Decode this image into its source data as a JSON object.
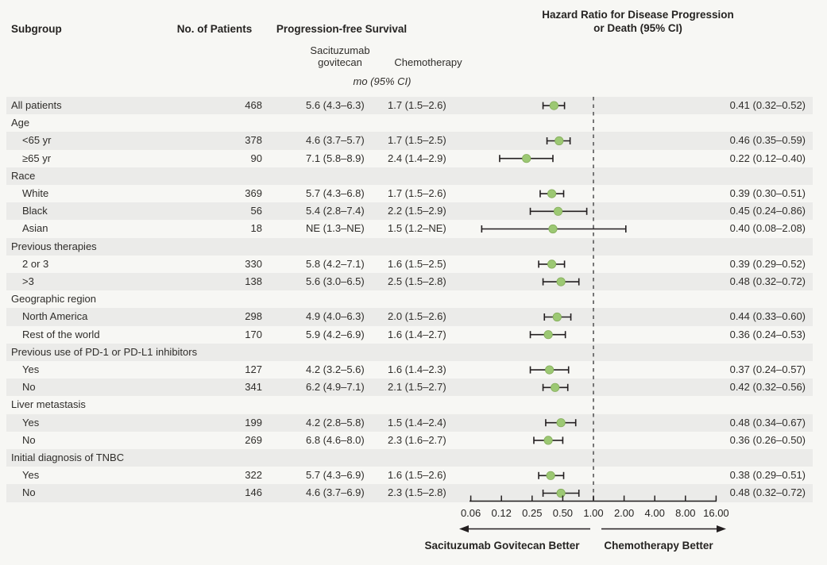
{
  "header": {
    "subgroup": "Subgroup",
    "no_of_patients": "No. of Patients",
    "pfs": "Progression-free Survival",
    "hr_title_line1": "Hazard Ratio for Disease Progression",
    "hr_title_line2": "or Death (95% CI)",
    "col_saci_line1": "Sacituzumab",
    "col_saci_line2": "govitecan",
    "col_chemo": "Chemotherapy",
    "units": "mo (95% CI)"
  },
  "footer": {
    "left_label": "Sacituzumab Govitecan Better",
    "right_label": "Chemotherapy Better"
  },
  "colors": {
    "background": "#f7f7f4",
    "stripe": "#ebebe9",
    "text": "#2f2d2a",
    "ci_bar": "#231f20",
    "marker_fill": "#9cc873",
    "marker_stroke": "#84ad5a",
    "reference_line": "#757575"
  },
  "chart_data": {
    "type": "forest",
    "title": "Hazard Ratio for Disease Progression or Death (95% CI)",
    "x_scale": "log2",
    "reference_value": "1.00",
    "x_tick_labels": [
      "0.06",
      "0.12",
      "0.25",
      "0.50",
      "1.00",
      "2.00",
      "4.00",
      "8.00",
      "16.00"
    ],
    "xlim_labels": [
      "0.06",
      "16.00"
    ],
    "arrow_left_label": "Sacituzumab Govitecan Better",
    "arrow_right_label": "Chemotherapy Better",
    "rows": [
      {
        "label": "All patients",
        "indent": false,
        "patients": "468",
        "sacituzumab": "5.6 (4.3–6.3)",
        "chemotherapy": "1.7 (1.5–2.6)",
        "hr_text": "0.41 (0.32–0.52)",
        "hr": 0.41,
        "lo": 0.32,
        "hi": 0.52
      },
      {
        "label": "Age",
        "indent": false
      },
      {
        "label": "<65 yr",
        "indent": true,
        "patients": "378",
        "sacituzumab": "4.6 (3.7–5.7)",
        "chemotherapy": "1.7 (1.5–2.5)",
        "hr_text": "0.46 (0.35–0.59)",
        "hr": 0.46,
        "lo": 0.35,
        "hi": 0.59
      },
      {
        "label": "≥65 yr",
        "indent": true,
        "patients": "90",
        "sacituzumab": "7.1 (5.8–8.9)",
        "chemotherapy": "2.4 (1.4–2.9)",
        "hr_text": "0.22 (0.12–0.40)",
        "hr": 0.22,
        "lo": 0.12,
        "hi": 0.4
      },
      {
        "label": "Race",
        "indent": false
      },
      {
        "label": "White",
        "indent": true,
        "patients": "369",
        "sacituzumab": "5.7 (4.3–6.8)",
        "chemotherapy": "1.7 (1.5–2.6)",
        "hr_text": "0.39 (0.30–0.51)",
        "hr": 0.39,
        "lo": 0.3,
        "hi": 0.51
      },
      {
        "label": "Black",
        "indent": true,
        "patients": "56",
        "sacituzumab": "5.4 (2.8–7.4)",
        "chemotherapy": "2.2 (1.5–2.9)",
        "hr_text": "0.45 (0.24–0.86)",
        "hr": 0.45,
        "lo": 0.24,
        "hi": 0.86
      },
      {
        "label": "Asian",
        "indent": true,
        "patients": "18",
        "sacituzumab": "NE (1.3–NE)",
        "chemotherapy": "1.5 (1.2–NE)",
        "hr_text": "0.40 (0.08–2.08)",
        "hr": 0.4,
        "lo": 0.08,
        "hi": 2.08
      },
      {
        "label": "Previous therapies",
        "indent": false
      },
      {
        "label": "2 or 3",
        "indent": true,
        "patients": "330",
        "sacituzumab": "5.8 (4.2–7.1)",
        "chemotherapy": "1.6 (1.5–2.5)",
        "hr_text": "0.39 (0.29–0.52)",
        "hr": 0.39,
        "lo": 0.29,
        "hi": 0.52
      },
      {
        "label": ">3",
        "indent": true,
        "patients": "138",
        "sacituzumab": "5.6 (3.0–6.5)",
        "chemotherapy": "2.5 (1.5–2.8)",
        "hr_text": "0.48 (0.32–0.72)",
        "hr": 0.48,
        "lo": 0.32,
        "hi": 0.72
      },
      {
        "label": "Geographic region",
        "indent": false
      },
      {
        "label": "North America",
        "indent": true,
        "patients": "298",
        "sacituzumab": "4.9 (4.0–6.3)",
        "chemotherapy": "2.0 (1.5–2.6)",
        "hr_text": "0.44 (0.33–0.60)",
        "hr": 0.44,
        "lo": 0.33,
        "hi": 0.6
      },
      {
        "label": "Rest of the world",
        "indent": true,
        "patients": "170",
        "sacituzumab": "5.9 (4.2–6.9)",
        "chemotherapy": "1.6 (1.4–2.7)",
        "hr_text": "0.36 (0.24–0.53)",
        "hr": 0.36,
        "lo": 0.24,
        "hi": 0.53
      },
      {
        "label": "Previous use of PD-1 or PD-L1 inhibitors",
        "indent": false
      },
      {
        "label": "Yes",
        "indent": true,
        "patients": "127",
        "sacituzumab": "4.2 (3.2–5.6)",
        "chemotherapy": "1.6 (1.4–2.3)",
        "hr_text": "0.37 (0.24–0.57)",
        "hr": 0.37,
        "lo": 0.24,
        "hi": 0.57
      },
      {
        "label": "No",
        "indent": true,
        "patients": "341",
        "sacituzumab": "6.2 (4.9–7.1)",
        "chemotherapy": "2.1 (1.5–2.7)",
        "hr_text": "0.42 (0.32–0.56)",
        "hr": 0.42,
        "lo": 0.32,
        "hi": 0.56
      },
      {
        "label": "Liver metastasis",
        "indent": false
      },
      {
        "label": "Yes",
        "indent": true,
        "patients": "199",
        "sacituzumab": "4.2 (2.8–5.8)",
        "chemotherapy": "1.5 (1.4–2.4)",
        "hr_text": "0.48 (0.34–0.67)",
        "hr": 0.48,
        "lo": 0.34,
        "hi": 0.67
      },
      {
        "label": "No",
        "indent": true,
        "patients": "269",
        "sacituzumab": "6.8 (4.6–8.0)",
        "chemotherapy": "2.3 (1.6–2.7)",
        "hr_text": "0.36 (0.26–0.50)",
        "hr": 0.36,
        "lo": 0.26,
        "hi": 0.5
      },
      {
        "label": "Initial diagnosis of TNBC",
        "indent": false
      },
      {
        "label": "Yes",
        "indent": true,
        "patients": "322",
        "sacituzumab": "5.7 (4.3–6.9)",
        "chemotherapy": "1.6 (1.5–2.6)",
        "hr_text": "0.38 (0.29–0.51)",
        "hr": 0.38,
        "lo": 0.29,
        "hi": 0.51
      },
      {
        "label": "No",
        "indent": true,
        "patients": "146",
        "sacituzumab": "4.6 (3.7–6.9)",
        "chemotherapy": "2.3 (1.5–2.8)",
        "hr_text": "0.48 (0.32–0.72)",
        "hr": 0.48,
        "lo": 0.32,
        "hi": 0.72
      }
    ]
  }
}
